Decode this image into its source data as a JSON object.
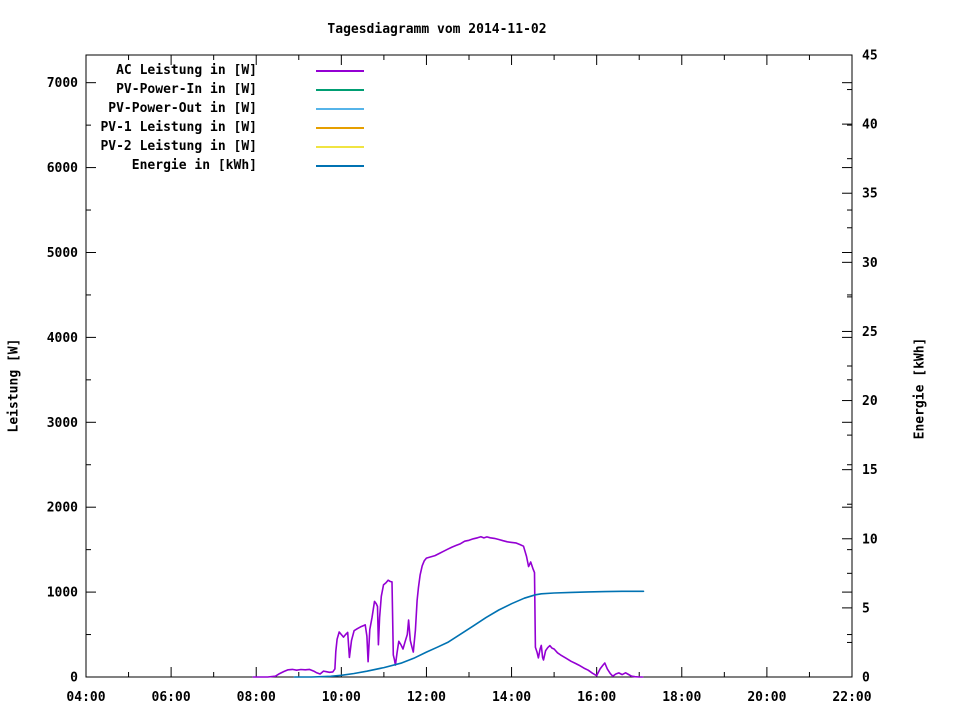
{
  "title": "Tagesdiagramm vom 2014-11-02",
  "chart_data": {
    "type": "line",
    "title": "Tagesdiagramm vom 2014-11-02",
    "grid": false,
    "legend_position": "top-left-inside",
    "x_axis": {
      "unit": "time",
      "min": 4,
      "max": 22,
      "major_step_hours": 2,
      "minor_step_hours": 1,
      "tick_labels": [
        "04:00",
        "06:00",
        "08:00",
        "10:00",
        "12:00",
        "14:00",
        "16:00",
        "18:00",
        "20:00",
        "22:00"
      ]
    },
    "y_axis_left": {
      "label": "Leistung [W]",
      "min": 0,
      "max": 7326,
      "major_step": 1000,
      "minor_step": 500,
      "tick_labels": [
        "0",
        "1000",
        "2000",
        "3000",
        "4000",
        "5000",
        "6000",
        "7000"
      ]
    },
    "y_axis_right": {
      "label": "Energie [kWh]",
      "min": 0,
      "max": 45,
      "major_step": 5,
      "minor_step": 2.5,
      "tick_labels": [
        "0",
        "5",
        "10",
        "15",
        "20",
        "25",
        "30",
        "35",
        "40",
        "45"
      ]
    },
    "series": [
      {
        "name": "AC Leistung in [W]",
        "color": "#9400D3",
        "axis": "left",
        "points": [
          [
            7.93,
            0
          ],
          [
            8.1,
            0
          ],
          [
            8.27,
            0
          ],
          [
            8.45,
            10
          ],
          [
            8.55,
            40
          ],
          [
            8.65,
            65
          ],
          [
            8.75,
            85
          ],
          [
            8.85,
            90
          ],
          [
            8.95,
            80
          ],
          [
            9.05,
            88
          ],
          [
            9.15,
            85
          ],
          [
            9.25,
            90
          ],
          [
            9.35,
            70
          ],
          [
            9.42,
            50
          ],
          [
            9.5,
            35
          ],
          [
            9.58,
            70
          ],
          [
            9.65,
            62
          ],
          [
            9.72,
            55
          ],
          [
            9.8,
            60
          ],
          [
            9.85,
            95
          ],
          [
            9.87,
            300
          ],
          [
            9.9,
            445
          ],
          [
            9.95,
            530
          ],
          [
            10.0,
            500
          ],
          [
            10.05,
            470
          ],
          [
            10.1,
            500
          ],
          [
            10.15,
            525
          ],
          [
            10.19,
            230
          ],
          [
            10.24,
            430
          ],
          [
            10.3,
            545
          ],
          [
            10.38,
            570
          ],
          [
            10.45,
            590
          ],
          [
            10.52,
            605
          ],
          [
            10.56,
            615
          ],
          [
            10.6,
            480
          ],
          [
            10.63,
            180
          ],
          [
            10.67,
            560
          ],
          [
            10.72,
            700
          ],
          [
            10.78,
            890
          ],
          [
            10.82,
            865
          ],
          [
            10.85,
            830
          ],
          [
            10.87,
            380
          ],
          [
            10.9,
            700
          ],
          [
            10.94,
            950
          ],
          [
            10.99,
            1085
          ],
          [
            11.05,
            1110
          ],
          [
            11.1,
            1140
          ],
          [
            11.15,
            1125
          ],
          [
            11.19,
            1120
          ],
          [
            11.22,
            260
          ],
          [
            11.25,
            200
          ],
          [
            11.27,
            140
          ],
          [
            11.31,
            290
          ],
          [
            11.35,
            420
          ],
          [
            11.4,
            380
          ],
          [
            11.45,
            330
          ],
          [
            11.5,
            420
          ],
          [
            11.55,
            500
          ],
          [
            11.58,
            670
          ],
          [
            11.62,
            430
          ],
          [
            11.66,
            350
          ],
          [
            11.69,
            295
          ],
          [
            11.74,
            550
          ],
          [
            11.78,
            900
          ],
          [
            11.81,
            1050
          ],
          [
            11.85,
            1200
          ],
          [
            11.9,
            1310
          ],
          [
            11.95,
            1370
          ],
          [
            12.0,
            1400
          ],
          [
            12.1,
            1415
          ],
          [
            12.2,
            1430
          ],
          [
            12.3,
            1455
          ],
          [
            12.4,
            1480
          ],
          [
            12.5,
            1505
          ],
          [
            12.6,
            1530
          ],
          [
            12.7,
            1550
          ],
          [
            12.8,
            1570
          ],
          [
            12.9,
            1600
          ],
          [
            13.0,
            1610
          ],
          [
            13.1,
            1628
          ],
          [
            13.2,
            1640
          ],
          [
            13.28,
            1652
          ],
          [
            13.35,
            1638
          ],
          [
            13.42,
            1650
          ],
          [
            13.5,
            1640
          ],
          [
            13.6,
            1632
          ],
          [
            13.7,
            1620
          ],
          [
            13.8,
            1605
          ],
          [
            13.9,
            1592
          ],
          [
            14.0,
            1585
          ],
          [
            14.1,
            1580
          ],
          [
            14.2,
            1560
          ],
          [
            14.28,
            1540
          ],
          [
            14.35,
            1420
          ],
          [
            14.4,
            1300
          ],
          [
            14.45,
            1355
          ],
          [
            14.5,
            1280
          ],
          [
            14.54,
            1230
          ],
          [
            14.56,
            350
          ],
          [
            14.6,
            290
          ],
          [
            14.63,
            225
          ],
          [
            14.67,
            330
          ],
          [
            14.7,
            372
          ],
          [
            14.73,
            230
          ],
          [
            14.75,
            200
          ],
          [
            14.8,
            310
          ],
          [
            14.85,
            345
          ],
          [
            14.9,
            370
          ],
          [
            14.95,
            340
          ],
          [
            15.0,
            330
          ],
          [
            15.08,
            285
          ],
          [
            15.15,
            260
          ],
          [
            15.27,
            225
          ],
          [
            15.4,
            185
          ],
          [
            15.5,
            160
          ],
          [
            15.58,
            140
          ],
          [
            15.7,
            105
          ],
          [
            15.8,
            80
          ],
          [
            15.9,
            45
          ],
          [
            16.0,
            15
          ],
          [
            16.08,
            95
          ],
          [
            16.15,
            140
          ],
          [
            16.19,
            165
          ],
          [
            16.25,
            95
          ],
          [
            16.32,
            40
          ],
          [
            16.38,
            10
          ],
          [
            16.45,
            35
          ],
          [
            16.52,
            48
          ],
          [
            16.6,
            28
          ],
          [
            16.68,
            50
          ],
          [
            16.75,
            30
          ],
          [
            16.82,
            10
          ],
          [
            16.9,
            4
          ],
          [
            17.0,
            0
          ],
          [
            17.08,
            0
          ]
        ]
      },
      {
        "name": "PV-Power-In in [W]",
        "color": "#009E73",
        "axis": "left",
        "points": []
      },
      {
        "name": "PV-Power-Out in [W]",
        "color": "#56B4E9",
        "axis": "left",
        "points": []
      },
      {
        "name": "PV-1 Leistung in [W]",
        "color": "#E69F00",
        "axis": "left",
        "points": []
      },
      {
        "name": "PV-2 Leistung in [W]",
        "color": "#F0E442",
        "axis": "left",
        "points": []
      },
      {
        "name": "Energie in [kWh]",
        "color": "#0072B2",
        "axis": "right",
        "points": [
          [
            8.9,
            0
          ],
          [
            9.3,
            0
          ],
          [
            9.75,
            0.05
          ],
          [
            10.0,
            0.12
          ],
          [
            10.3,
            0.25
          ],
          [
            10.6,
            0.42
          ],
          [
            11.0,
            0.68
          ],
          [
            11.4,
            1.0
          ],
          [
            11.7,
            1.35
          ],
          [
            12.0,
            1.8
          ],
          [
            12.25,
            2.15
          ],
          [
            12.5,
            2.5
          ],
          [
            12.8,
            3.1
          ],
          [
            13.1,
            3.7
          ],
          [
            13.4,
            4.3
          ],
          [
            13.7,
            4.85
          ],
          [
            14.0,
            5.3
          ],
          [
            14.3,
            5.7
          ],
          [
            14.56,
            5.95
          ],
          [
            14.7,
            6.02
          ],
          [
            15.0,
            6.08
          ],
          [
            15.4,
            6.12
          ],
          [
            15.8,
            6.16
          ],
          [
            16.2,
            6.18
          ],
          [
            16.6,
            6.2
          ],
          [
            17.1,
            6.2
          ]
        ]
      }
    ]
  }
}
